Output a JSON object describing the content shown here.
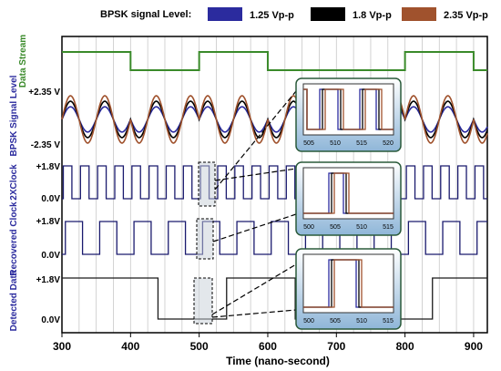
{
  "chart_data": {
    "type": "line",
    "legend": {
      "title": "BPSK signal Level:",
      "placement": "top",
      "entries": [
        {
          "label": "1.25 Vp-p",
          "color": "#2b2b9e"
        },
        {
          "label": "1.8 Vp-p",
          "color": "#000000"
        },
        {
          "label": "2.35 Vp-p",
          "color": "#a0522d"
        }
      ]
    },
    "xlabel": "Time (nano-second)",
    "xlim": [
      300,
      920
    ],
    "xticks": [
      300,
      400,
      500,
      600,
      700,
      800,
      900
    ],
    "grid": true,
    "panels": [
      {
        "name": "Data Stream",
        "ylabel": "Data Stream",
        "ticks": [],
        "color": "#3a8a2a",
        "steps": [
          [
            300,
            1
          ],
          [
            400,
            0
          ],
          [
            500,
            1
          ],
          [
            600,
            0
          ],
          [
            800,
            1
          ],
          [
            900,
            0
          ]
        ]
      },
      {
        "name": "BPSK Signal Level",
        "ylabel": "BPSK Signal Level",
        "ticks": [
          "+2.35 V",
          "-2.35 V"
        ],
        "carrier_period_ns": 50,
        "amplitudes_vpp": [
          1.25,
          1.8,
          2.35
        ]
      },
      {
        "name": "2XClock",
        "ylabel": "2XClock",
        "ticks": [
          "+1.8V",
          "0.0V"
        ],
        "period_ns": 25
      },
      {
        "name": "Recovered Clock",
        "ylabel": "Recovered Clock",
        "ticks": [
          "+1.8V",
          "0.0V"
        ],
        "period_ns": 50
      },
      {
        "name": "Detected Data",
        "ylabel": "Detected Data",
        "ticks": [
          "+1.8V",
          "0.0V"
        ],
        "steps": [
          [
            300,
            1
          ],
          [
            440,
            0
          ],
          [
            540,
            1
          ],
          [
            640,
            0
          ],
          [
            840,
            1
          ]
        ]
      }
    ],
    "insets": [
      {
        "name": "zoom-bpsk",
        "ticks": [
          "505",
          "510",
          "515",
          "520"
        ],
        "xlim": [
          500,
          524
        ]
      },
      {
        "name": "zoom-2xclock",
        "ticks": [
          "500",
          "505",
          "510",
          "515"
        ],
        "xlim": [
          500,
          518
        ]
      },
      {
        "name": "zoom-detected",
        "ticks": [
          "500",
          "505",
          "510",
          "515"
        ],
        "xlim": [
          500,
          518
        ]
      }
    ]
  }
}
